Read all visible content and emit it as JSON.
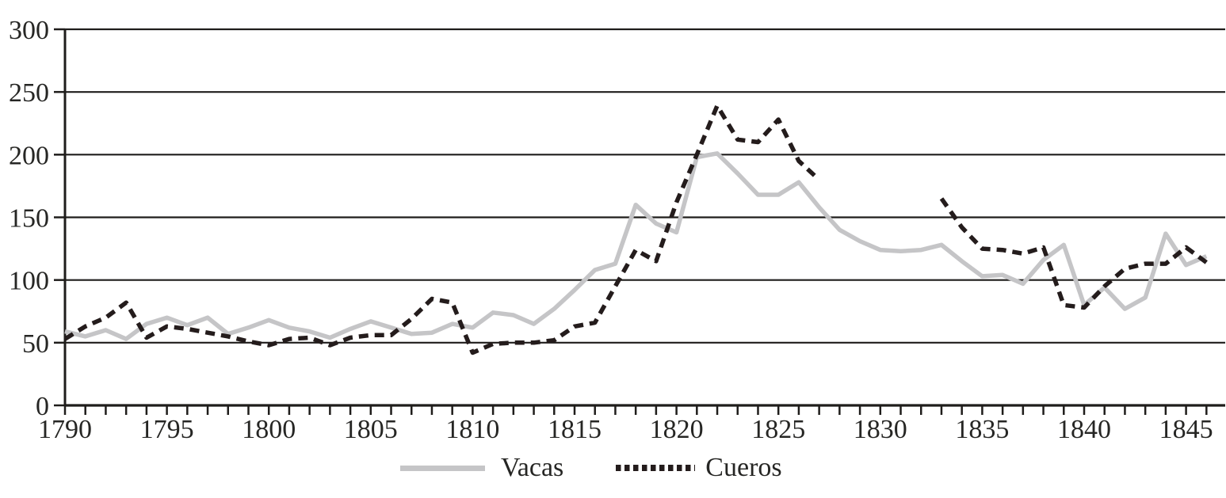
{
  "page": {
    "background": "#ffffff",
    "text_color": "#262624",
    "axis_color": "#1f1d1b"
  },
  "chart_data": {
    "type": "line",
    "title": "",
    "xlabel": "",
    "ylabel": "",
    "x": [
      1790,
      1791,
      1792,
      1793,
      1794,
      1795,
      1796,
      1797,
      1798,
      1799,
      1800,
      1801,
      1802,
      1803,
      1804,
      1805,
      1806,
      1807,
      1808,
      1809,
      1810,
      1811,
      1812,
      1813,
      1814,
      1815,
      1816,
      1817,
      1818,
      1819,
      1820,
      1821,
      1822,
      1823,
      1824,
      1825,
      1826,
      1827,
      1828,
      1829,
      1830,
      1831,
      1832,
      1833,
      1834,
      1835,
      1836,
      1837,
      1838,
      1839,
      1840,
      1841,
      1842,
      1843,
      1844,
      1845,
      1846
    ],
    "series": [
      {
        "name": "Vacas",
        "color": "#c5c5c7",
        "style": "solid",
        "values": [
          59,
          55,
          60,
          53,
          65,
          70,
          64,
          70,
          57,
          62,
          68,
          62,
          59,
          54,
          61,
          67,
          62,
          57,
          58,
          65,
          62,
          74,
          72,
          65,
          77,
          92,
          108,
          113,
          160,
          145,
          138,
          198,
          201,
          185,
          168,
          168,
          178,
          158,
          140,
          131,
          124,
          123,
          124,
          128,
          115,
          103,
          104,
          97,
          116,
          128,
          80,
          94,
          77,
          86,
          137,
          112,
          119
        ]
      },
      {
        "name": "Cueros",
        "color": "#241c1c",
        "style": "dashed",
        "values": [
          53,
          63,
          70,
          82,
          54,
          63,
          61,
          58,
          55,
          51,
          48,
          53,
          54,
          48,
          54,
          56,
          56,
          69,
          85,
          82,
          42,
          49,
          50,
          50,
          52,
          63,
          66,
          95,
          124,
          115,
          162,
          200,
          239,
          212,
          210,
          228,
          195,
          180,
          null,
          null,
          null,
          null,
          null,
          165,
          142,
          125,
          124,
          121,
          126,
          80,
          78,
          95,
          109,
          113,
          113,
          126,
          114
        ]
      }
    ],
    "ylim": [
      0,
      300
    ],
    "yticks": [
      0,
      50,
      100,
      150,
      200,
      250,
      300
    ],
    "xtick_labels": [
      1790,
      1795,
      1800,
      1805,
      1810,
      1815,
      1820,
      1825,
      1830,
      1835,
      1840,
      1845
    ],
    "x_minor_tick_step": 1,
    "x_label_step": 5,
    "x_axis_end": 1846,
    "grid": "horizontal",
    "legend_position": "bottom-center",
    "legend": [
      "Vacas",
      "Cueros"
    ]
  }
}
